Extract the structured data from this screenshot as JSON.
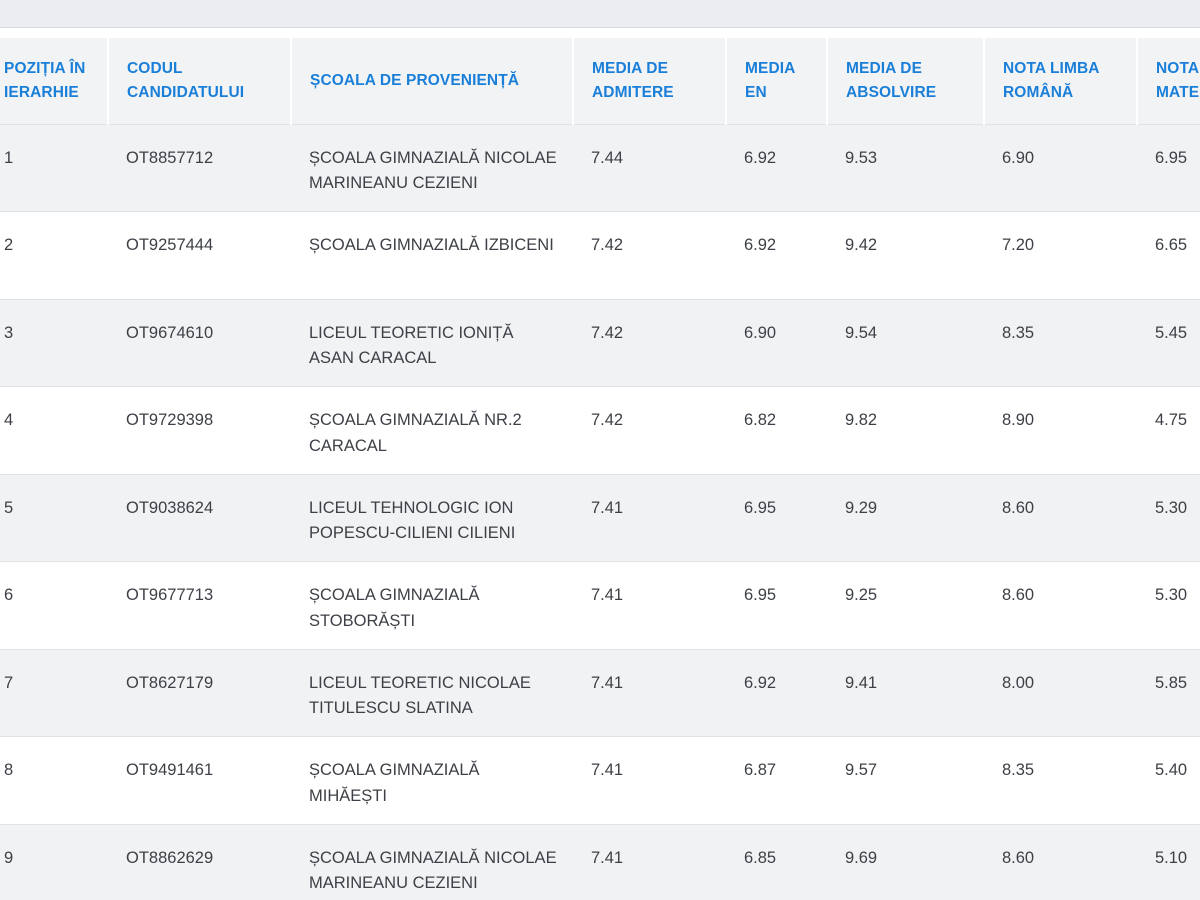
{
  "table": {
    "headers": [
      "POZIȚIA ÎN IERARHIE",
      "CODUL CANDIDATULUI",
      "ȘCOALA DE PROVENIENȚĂ",
      "MEDIA DE ADMITERE",
      "MEDIA EN",
      "MEDIA DE ABSOLVIRE",
      "NOTA LIMBA ROMÂNĂ",
      "NOTA LA MATEMATICĂ"
    ],
    "rows": [
      {
        "pos": "1",
        "code": "OT8857712",
        "school": "ȘCOALA GIMNAZIALĂ NICOLAE MARINEANU CEZIENI",
        "admitere": "7.44",
        "en": "6.92",
        "absolvire": "9.53",
        "romana": "6.90",
        "mate": "6.95"
      },
      {
        "pos": "2",
        "code": "OT9257444",
        "school": "ȘCOALA GIMNAZIALĂ IZBICENI",
        "admitere": "7.42",
        "en": "6.92",
        "absolvire": "9.42",
        "romana": "7.20",
        "mate": "6.65"
      },
      {
        "pos": "3",
        "code": "OT9674610",
        "school": "LICEUL TEORETIC IONIȚĂ ASAN CARACAL",
        "admitere": "7.42",
        "en": "6.90",
        "absolvire": "9.54",
        "romana": "8.35",
        "mate": "5.45"
      },
      {
        "pos": "4",
        "code": "OT9729398",
        "school": "ȘCOALA GIMNAZIALĂ NR.2 CARACAL",
        "admitere": "7.42",
        "en": "6.82",
        "absolvire": "9.82",
        "romana": "8.90",
        "mate": "4.75"
      },
      {
        "pos": "5",
        "code": "OT9038624",
        "school": "LICEUL TEHNOLOGIC ION POPESCU-CILIENI CILIENI",
        "admitere": "7.41",
        "en": "6.95",
        "absolvire": "9.29",
        "romana": "8.60",
        "mate": "5.30"
      },
      {
        "pos": "6",
        "code": "OT9677713",
        "school": "ȘCOALA GIMNAZIALĂ STOBORĂȘTI",
        "admitere": "7.41",
        "en": "6.95",
        "absolvire": "9.25",
        "romana": "8.60",
        "mate": "5.30"
      },
      {
        "pos": "7",
        "code": "OT8627179",
        "school": "LICEUL TEORETIC NICOLAE TITULESCU SLATINA",
        "admitere": "7.41",
        "en": "6.92",
        "absolvire": "9.41",
        "romana": "8.00",
        "mate": "5.85"
      },
      {
        "pos": "8",
        "code": "OT9491461",
        "school": "ȘCOALA GIMNAZIALĂ MIHĂEȘTI",
        "admitere": "7.41",
        "en": "6.87",
        "absolvire": "9.57",
        "romana": "8.35",
        "mate": "5.40"
      },
      {
        "pos": "9",
        "code": "OT8862629",
        "school": "ȘCOALA GIMNAZIALĂ NICOLAE MARINEANU CEZIENI",
        "admitere": "7.41",
        "en": "6.85",
        "absolvire": "9.69",
        "romana": "8.60",
        "mate": "5.10"
      }
    ]
  }
}
